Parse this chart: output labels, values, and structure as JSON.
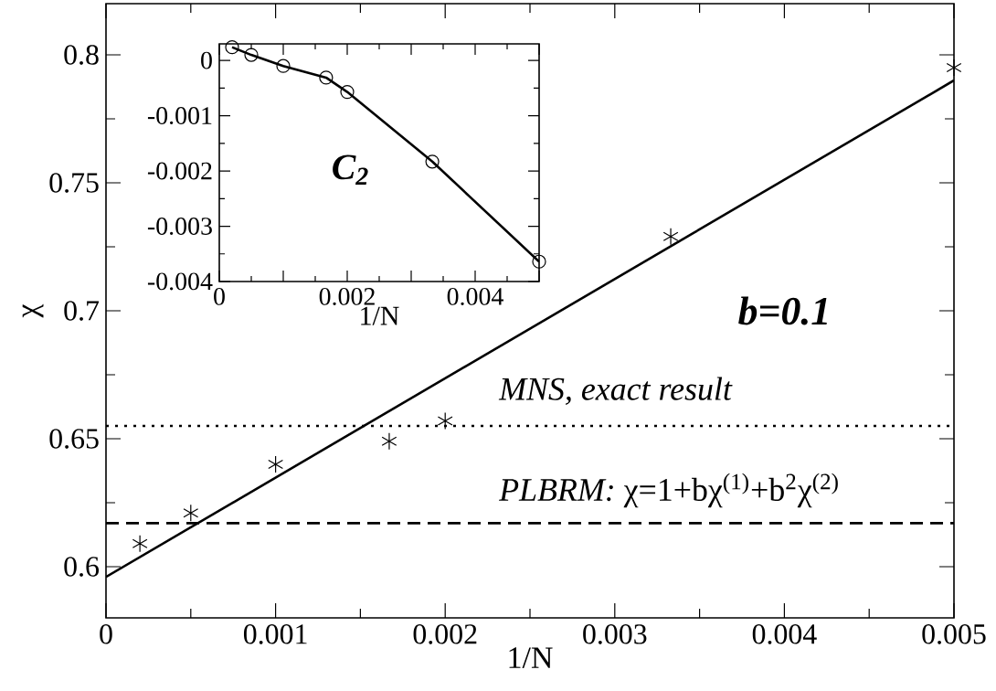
{
  "chart_data": [
    {
      "type": "scatter",
      "xlabel": "1/N",
      "ylabel": "χ",
      "xlim": [
        0,
        0.005
      ],
      "ylim": [
        0.58,
        0.82
      ],
      "xticks": [
        0,
        0.001,
        0.002,
        0.003,
        0.004,
        0.005
      ],
      "yticks": [
        0.6,
        0.65,
        0.7,
        0.75,
        0.8
      ],
      "series": [
        {
          "type": "scatter",
          "marker": "cross",
          "color": "#000000",
          "x": [
            0.0002,
            0.0005,
            0.001,
            0.00167,
            0.002,
            0.00333,
            0.005
          ],
          "values": [
            0.609,
            0.621,
            0.64,
            0.649,
            0.657,
            0.729,
            0.795
          ]
        },
        {
          "type": "line",
          "marker": "none",
          "line_style": "solid",
          "color": "#000000",
          "x": [
            0,
            0.005
          ],
          "values": [
            0.596,
            0.79
          ]
        }
      ],
      "ref_lines": [
        {
          "axis": "y",
          "value": 0.655,
          "label": "MNS, exact result",
          "line_style": "dotted",
          "color": "#000000"
        },
        {
          "axis": "y",
          "value": 0.617,
          "label": "*PLBRM:*  χ=1+bχ$^{(1)}$+b$^{2}$χ$^{(2)}$",
          "line_style": "dashed",
          "color": "#000000"
        }
      ],
      "annotations": [
        "b=0.1"
      ]
    },
    {
      "type": "line",
      "marker": "circle",
      "line_style": "solid",
      "xlabel": "1/N",
      "xlim": [
        0,
        0.005
      ],
      "ylim": [
        -0.004,
        0.0003
      ],
      "xticks": [
        0,
        {
          "value": 0.001,
          "label": null
        },
        0.002,
        {
          "value": 0.003,
          "label": null
        },
        0.004,
        {
          "value": 0.005,
          "label": null
        }
      ],
      "yticks": [
        0,
        -0.001,
        -0.002,
        -0.003,
        -0.004
      ],
      "series": [
        {
          "color": "#000000",
          "x": [
            0.0002,
            0.0005,
            0.001,
            0.00167,
            0.002,
            0.00333,
            0.005
          ],
          "values": [
            0.00024,
            0.0001,
            -0.0001,
            -0.00031,
            -0.00057,
            -0.00183,
            -0.00364
          ]
        }
      ],
      "annotations": [
        "C$_{2}$"
      ]
    }
  ]
}
